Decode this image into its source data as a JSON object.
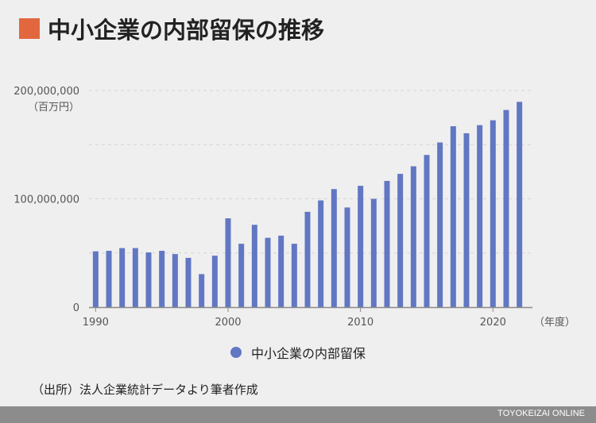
{
  "title": "中小企業の内部留保の推移",
  "source": "（出所）法人企業統計データより筆者作成",
  "footer_brand": "TOYOKEIZAI ONLINE",
  "colors": {
    "accent": "#e2673f",
    "bar": "#6277c3",
    "footer": "#8c8c8c"
  },
  "chart_data": {
    "type": "bar",
    "title": "中小企業の内部留保の推移",
    "xlabel": "（年度）",
    "ylabel": "（百万円）",
    "ylim": [
      0,
      200000000
    ],
    "yticks": [
      0,
      100000000,
      200000000
    ],
    "ytick_labels": [
      "0",
      "100,000,000",
      "200,000,000"
    ],
    "xticks": [
      1990,
      2000,
      2010,
      2020
    ],
    "xtick_labels": [
      "1990",
      "2000",
      "2010",
      "2020"
    ],
    "grid": true,
    "legend_position": "bottom",
    "x": [
      1990,
      1991,
      1992,
      1993,
      1994,
      1995,
      1996,
      1997,
      1998,
      1999,
      2000,
      2001,
      2002,
      2003,
      2004,
      2005,
      2006,
      2007,
      2008,
      2009,
      2010,
      2011,
      2012,
      2013,
      2014,
      2015,
      2016,
      2017,
      2018,
      2019,
      2020,
      2021,
      2022
    ],
    "series": [
      {
        "name": "中小企業の内部留保",
        "values": [
          51500000,
          52000000,
          54500000,
          54500000,
          50500000,
          52000000,
          49000000,
          45500000,
          30500000,
          47500000,
          82000000,
          58500000,
          76000000,
          64000000,
          66000000,
          58500000,
          88000000,
          98500000,
          109000000,
          92000000,
          112000000,
          100000000,
          116500000,
          123000000,
          130000000,
          140500000,
          152000000,
          167000000,
          160500000,
          168000000,
          172500000,
          182000000,
          189500000
        ]
      }
    ]
  }
}
